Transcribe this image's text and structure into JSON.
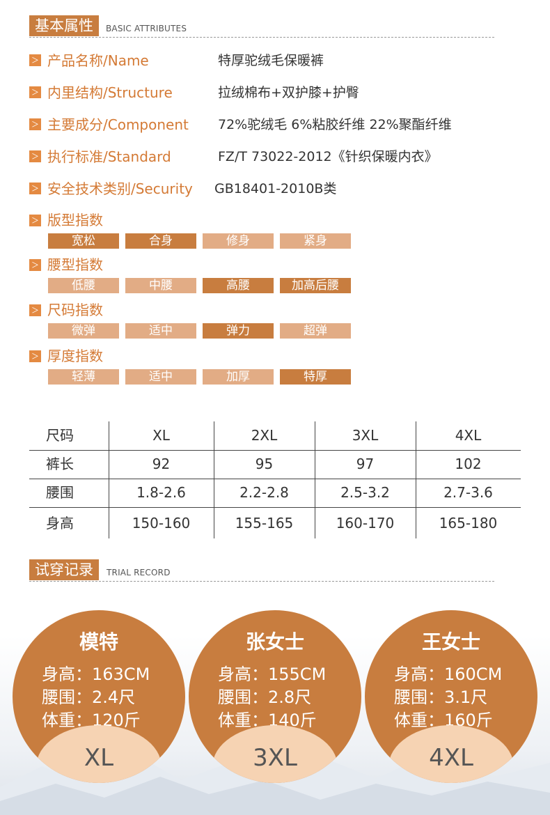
{
  "basic": {
    "title": "基本属性",
    "subtitle": "BASIC ATTRIBUTES",
    "arrow": "＞",
    "attributes": [
      {
        "label": "产品名称/Name",
        "value": "特厚驼绒毛保暖裤"
      },
      {
        "label": "内里结构/Structure",
        "value": "拉绒棉布+双护膝+护臀"
      },
      {
        "label": "主要成分/Component",
        "value": "72%驼绒毛   6%粘胶纤维  22%聚酯纤维"
      },
      {
        "label": "执行标准/Standard",
        "value": "FZ/T    73022-2012《针织保暖内衣》"
      },
      {
        "label": "安全技术类别/Security",
        "value": "GB18401-2010B类"
      }
    ],
    "indices": [
      {
        "label": "版型指数",
        "options": [
          "宽松",
          "合身",
          "修身",
          "紧身"
        ],
        "selected": [
          0,
          1
        ]
      },
      {
        "label": "腰型指数",
        "options": [
          "低腰",
          "中腰",
          "高腰",
          "加高后腰"
        ],
        "selected": [
          2,
          3
        ]
      },
      {
        "label": "尺码指数",
        "options": [
          "微弹",
          "适中",
          "弹力",
          "超弹"
        ],
        "selected": [
          2
        ]
      },
      {
        "label": "厚度指数",
        "options": [
          "轻薄",
          "适中",
          "加厚",
          "特厚"
        ],
        "selected": [
          3
        ]
      }
    ]
  },
  "size_table": {
    "headers": [
      "尺码",
      "XL",
      "2XL",
      "3XL",
      "4XL"
    ],
    "rows": [
      [
        "裤长",
        "92",
        "95",
        "97",
        "102"
      ],
      [
        "腰围",
        "1.8-2.6",
        "2.2-2.8",
        "2.5-3.2",
        "2.7-3.6"
      ],
      [
        "身高",
        "150-160",
        "155-165",
        "160-170",
        "165-180"
      ]
    ]
  },
  "trial": {
    "title": "试穿记录",
    "subtitle": "TRIAL RECORD",
    "people": [
      {
        "name": "模特",
        "height": "身高：163CM",
        "waist": "腰围：2.4尺",
        "weight": "体重：120斤",
        "size": "XL"
      },
      {
        "name": "张女士",
        "height": "身高：155CM",
        "waist": "腰围：2.8尺",
        "weight": "体重：140斤",
        "size": "3XL"
      },
      {
        "name": "王女士",
        "height": "身高：160CM",
        "waist": "腰围：3.1尺",
        "weight": "体重：160斤",
        "size": "4XL"
      }
    ]
  },
  "colors": {
    "accent": "#c87d3f",
    "accent_light": "#e2ac85",
    "label_orange": "#d47a35",
    "bowl": "#f6d3b3"
  }
}
